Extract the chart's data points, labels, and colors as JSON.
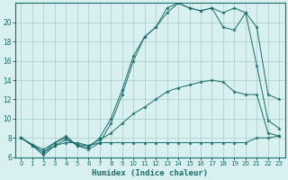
{
  "xlabel": "Humidex (Indice chaleur)",
  "x": [
    0,
    1,
    2,
    3,
    4,
    5,
    6,
    7,
    8,
    9,
    10,
    11,
    12,
    13,
    14,
    15,
    16,
    17,
    18,
    19,
    20,
    21,
    22,
    23
  ],
  "line1": [
    8.0,
    7.2,
    6.2,
    7.2,
    7.5,
    7.5,
    7.2,
    7.5,
    7.5,
    7.5,
    7.5,
    7.5,
    7.5,
    7.5,
    7.5,
    7.5,
    7.5,
    7.5,
    7.5,
    7.5,
    7.5,
    8.0,
    8.0,
    8.2
  ],
  "line2": [
    8.0,
    7.2,
    6.5,
    7.2,
    7.8,
    7.3,
    7.2,
    7.8,
    8.5,
    9.5,
    10.5,
    11.2,
    12.0,
    12.8,
    13.2,
    13.5,
    13.8,
    14.0,
    13.8,
    12.8,
    12.5,
    12.5,
    8.5,
    8.2
  ],
  "line3": [
    8.0,
    7.3,
    6.5,
    7.5,
    8.2,
    7.2,
    7.0,
    8.0,
    10.0,
    13.0,
    16.5,
    18.5,
    19.5,
    21.5,
    22.0,
    21.5,
    21.2,
    21.5,
    19.5,
    19.2,
    21.0,
    15.5,
    9.8,
    9.0
  ],
  "line4": [
    8.0,
    7.3,
    6.8,
    7.5,
    8.0,
    7.2,
    6.8,
    7.5,
    9.5,
    12.5,
    16.0,
    18.5,
    19.5,
    21.0,
    22.0,
    21.5,
    21.2,
    21.5,
    21.0,
    21.5,
    21.0,
    19.5,
    12.5,
    12.0
  ],
  "color": "#1a6b6b",
  "bg_color": "#d8f0f0",
  "grid_color": "#b0d0d0",
  "ylim": [
    6,
    22
  ],
  "yticks": [
    6,
    8,
    10,
    12,
    14,
    16,
    18,
    20
  ],
  "xlim": [
    -0.5,
    23.5
  ],
  "xticks": [
    0,
    1,
    2,
    3,
    4,
    5,
    6,
    7,
    8,
    9,
    10,
    11,
    12,
    13,
    14,
    15,
    16,
    17,
    18,
    19,
    20,
    21,
    22,
    23
  ]
}
